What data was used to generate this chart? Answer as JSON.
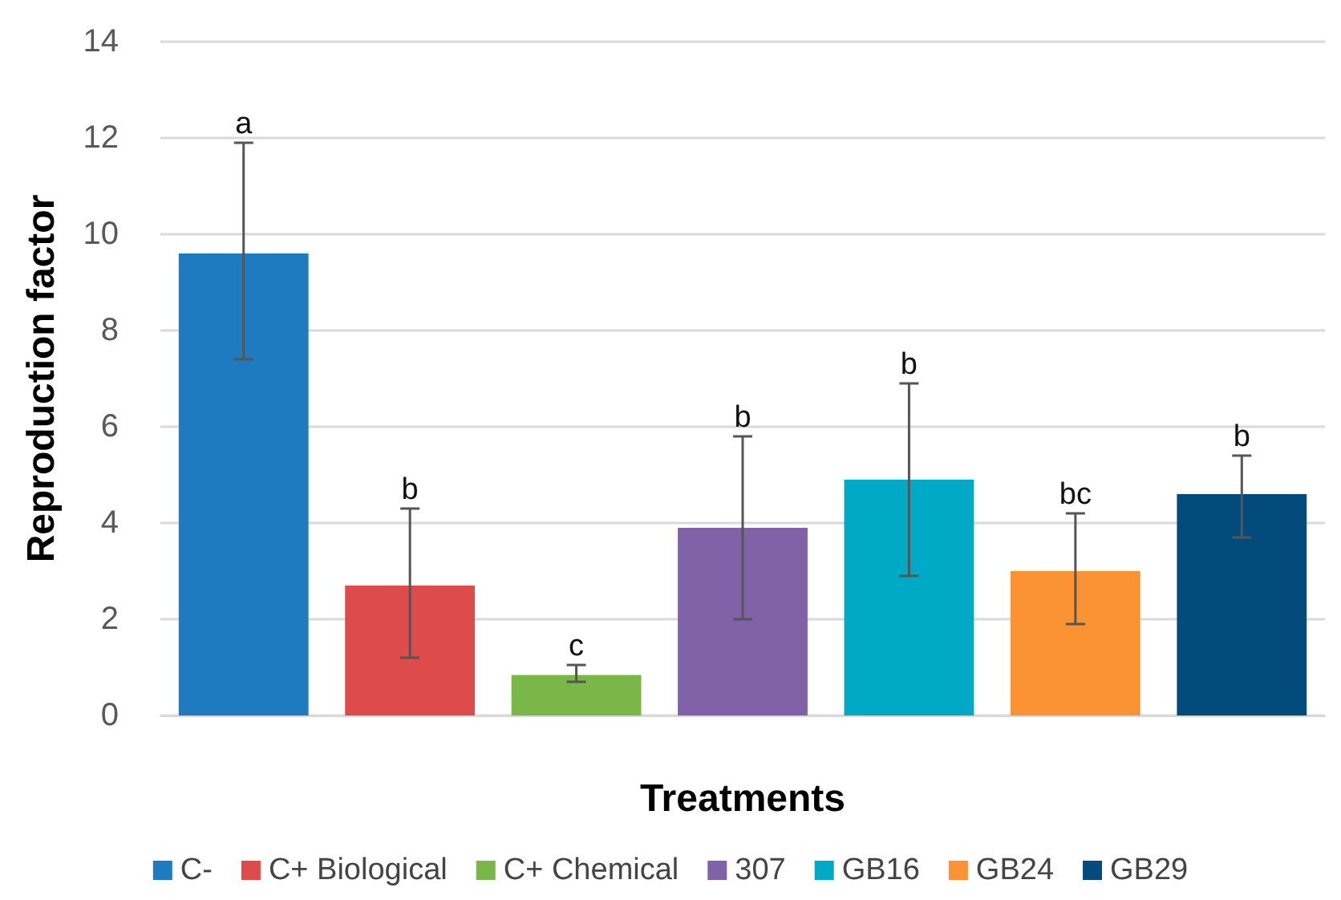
{
  "chart_data": {
    "type": "bar",
    "xlabel": "Treatments",
    "ylabel": "Reproduction factor",
    "categories": [
      null,
      null,
      null,
      null,
      null,
      null,
      null
    ],
    "series": [
      {
        "name": "C-",
        "color": "#1f7bc0",
        "values": [
          9.6,
          null,
          null,
          null,
          null,
          null,
          null
        ],
        "errors": [
          [
            7.4,
            11.9
          ],
          null,
          null,
          null,
          null,
          null,
          null
        ]
      },
      {
        "name": "C+ Biological",
        "color": "#de4b4b",
        "values": [
          null,
          2.7,
          null,
          null,
          null,
          null,
          null
        ],
        "errors": [
          null,
          [
            1.2,
            4.3
          ],
          null,
          null,
          null,
          null,
          null
        ]
      },
      {
        "name": "C+ Chemical",
        "color": "#7ab648",
        "values": [
          null,
          null,
          0.84,
          null,
          null,
          null,
          null
        ],
        "errors": [
          null,
          null,
          [
            0.7,
            1.05
          ],
          null,
          null,
          null,
          null
        ]
      },
      {
        "name": "307",
        "color": "#8162a8",
        "values": [
          null,
          null,
          null,
          3.9,
          null,
          null,
          null
        ],
        "errors": [
          null,
          null,
          null,
          [
            2.0,
            5.8
          ],
          null,
          null,
          null
        ]
      },
      {
        "name": "GB16",
        "color": "#00a9c6",
        "values": [
          null,
          null,
          null,
          null,
          4.9,
          null,
          null
        ],
        "errors": [
          null,
          null,
          null,
          null,
          [
            2.9,
            6.9
          ],
          null,
          null
        ]
      },
      {
        "name": "GB24",
        "color": "#fb9334",
        "values": [
          null,
          null,
          null,
          null,
          null,
          3.0,
          null
        ],
        "errors": [
          null,
          null,
          null,
          null,
          null,
          [
            1.9,
            4.2
          ],
          null
        ]
      },
      {
        "name": "GB29",
        "color": "#034b7a",
        "values": [
          null,
          null,
          null,
          null,
          null,
          null,
          4.6
        ],
        "errors": [
          null,
          null,
          null,
          null,
          null,
          null,
          [
            3.7,
            5.4
          ]
        ]
      }
    ],
    "annotations": [
      "a",
      "b",
      "c",
      "b",
      "b",
      "bc",
      "b"
    ],
    "ylim": [
      0,
      14
    ],
    "yticks": [
      0,
      2,
      4,
      6,
      8,
      10,
      12,
      14
    ],
    "grid": "y",
    "legend": "bottom",
    "tick_labels": "y"
  }
}
